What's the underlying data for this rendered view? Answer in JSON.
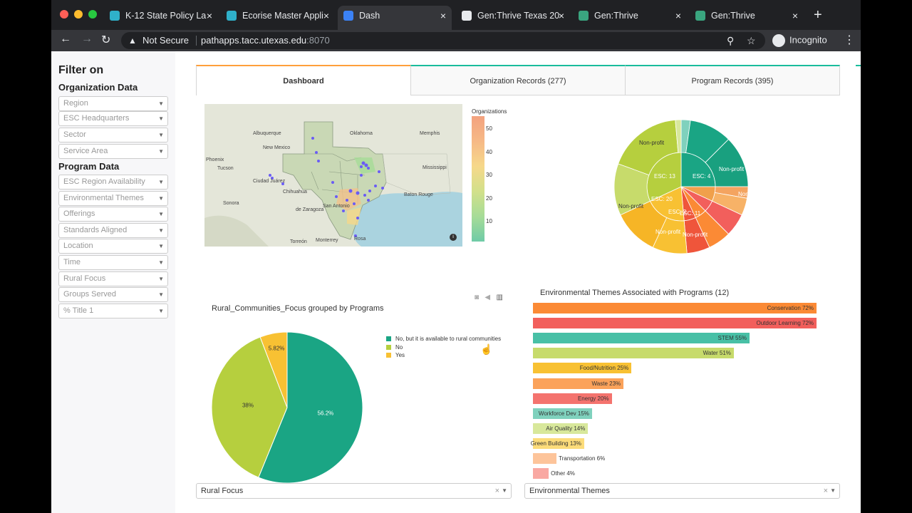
{
  "browser": {
    "tabs": [
      {
        "title": "K-12 State Policy La",
        "active": false,
        "icon": "k12-favicon-icon"
      },
      {
        "title": "Ecorise Master Appli",
        "active": false,
        "icon": "ecorise-favicon-icon"
      },
      {
        "title": "Dash",
        "active": true,
        "icon": "dash-favicon-icon"
      },
      {
        "title": "Gen:Thrive Texas 20",
        "active": false,
        "icon": "globe-icon"
      },
      {
        "title": "Gen:Thrive",
        "active": false,
        "icon": "genthrive-favicon-icon"
      },
      {
        "title": "Gen:Thrive",
        "active": false,
        "icon": "genthrive-favicon-icon"
      }
    ],
    "security_label": "Not Secure",
    "url_host": "pathapps.tacc.utexas.edu",
    "url_port": ":8070",
    "profile_label": "Incognito"
  },
  "sidebar": {
    "title": "Filter on",
    "org_section": "Organization Data",
    "org_filters": [
      "Region",
      "ESC Headquarters",
      "Sector",
      "Service Area"
    ],
    "program_section": "Program Data",
    "program_filters": [
      "ESC Region Availability",
      "Environmental Themes",
      "Offerings",
      "Standards Aligned",
      "Location",
      "Time",
      "Rural Focus",
      "Groups Served",
      "% Title 1"
    ]
  },
  "dashboard_tabs": [
    {
      "label": "Dashboard",
      "selected": true
    },
    {
      "label": "Organization Records (277)",
      "selected": false
    },
    {
      "label": "Program Records (395)",
      "selected": false
    }
  ],
  "map": {
    "colorbar_title": "Organizations",
    "colorbar_ticks": [
      "50",
      "40",
      "30",
      "20",
      "10"
    ],
    "places": [
      "Albuquerque",
      "Oklahoma",
      "Memphis",
      "Phoenix",
      "New Mexico",
      "Tucson",
      "Ciudad Juárez",
      "Mississippi",
      "Baton Rouge",
      "San Antonio",
      "Sonora",
      "Chihuahua",
      "de Zaragoza",
      "Torreón",
      "Monterrey",
      "Rosa"
    ]
  },
  "sunburst": {
    "labels": [
      "ESC: 13",
      "ESC: 4",
      "ESC: 20",
      "ESC: 2",
      "ESC: 11",
      "Non-profit",
      "Non-profit",
      "Non-profit",
      "Non-profit",
      "Non-profit",
      "Non-profit"
    ]
  },
  "pie_chart": {
    "title": "Rural_Communities_Focus grouped by Programs",
    "legend": [
      "No, but it is available to rural communities",
      "No",
      "Yes"
    ],
    "labels": [
      "56.2%",
      "38%",
      "5.82%"
    ]
  },
  "bar_chart": {
    "title": "Environmental Themes Associated with Programs (12)"
  },
  "chart_data": [
    {
      "type": "pie",
      "title": "Rural_Communities_Focus grouped by Programs",
      "categories": [
        "No, but it is available to rural communities",
        "No",
        "Yes"
      ],
      "values": [
        56.2,
        38,
        5.82
      ],
      "colors": [
        "#1aa584",
        "#b6cf3e",
        "#f8c133"
      ],
      "legend": "right"
    },
    {
      "type": "bar",
      "orientation": "horizontal",
      "title": "Environmental Themes Associated with Programs (12)",
      "categories": [
        "Conservation",
        "Outdoor Learning",
        "STEM",
        "Water",
        "Food/Nutrition",
        "Waste",
        "Energy",
        "Workforce Dev",
        "Air Quality",
        "Green Building",
        "Transportation",
        "Other"
      ],
      "values": [
        72,
        72,
        55,
        51,
        25,
        23,
        20,
        15,
        14,
        13,
        6,
        4
      ],
      "labels": [
        "Conservation 72%",
        "Outdoor Learning 72%",
        "STEM 55%",
        "Water 51%",
        "Food/Nutrition 25%",
        "Waste 23%",
        "Energy 20%",
        "Workforce Dev 15%",
        "Air Quality 14%",
        "Green Building 13%",
        "Transportation 6%",
        "Other 4%"
      ],
      "colors": [
        "#fb8a35",
        "#f25f5c",
        "#48c0a6",
        "#c7db6b",
        "#f8c133",
        "#fba25a",
        "#f4736e",
        "#7fd1bd",
        "#d8e89b",
        "#fcdc7a",
        "#fdc49a",
        "#f9a8a2"
      ],
      "xlim": [
        0,
        100
      ]
    }
  ],
  "filters_bottom": {
    "left": "Rural Focus",
    "right": "Environmental Themes",
    "clear": "×"
  }
}
